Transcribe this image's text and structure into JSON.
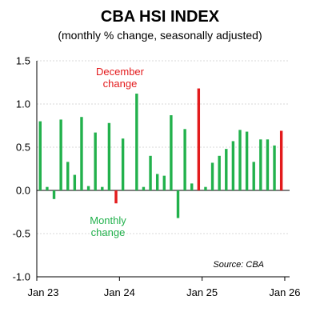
{
  "title": "CBA HSI INDEX",
  "subtitle": "(monthly % change, seasonally adjusted)",
  "colors": {
    "monthly": "#22b14c",
    "december": "#e31a1c",
    "grid": "#d8d8d8",
    "axis": "#000000"
  },
  "annotations": {
    "december": [
      "December",
      "change"
    ],
    "monthly": [
      "Monthly",
      "change"
    ],
    "source": "Source: CBA"
  },
  "chart_data": {
    "type": "bar",
    "title": "CBA HSI INDEX",
    "subtitle": "(monthly % change, seasonally adjusted)",
    "xlabel": "",
    "ylabel": "",
    "ylim": [
      -1.0,
      1.5
    ],
    "yticks": [
      -1.0,
      -0.5,
      0.0,
      0.5,
      1.0,
      1.5
    ],
    "ytick_labels": [
      "-1.0",
      "-0.5",
      "0.0",
      "0.5",
      "1.0",
      "1.5"
    ],
    "x_tick_labels": [
      "Jan 23",
      "Jan 24",
      "Jan 25",
      "Jan 26"
    ],
    "grid": true,
    "categories": [
      "Jan 23",
      "Feb 23",
      "Mar 23",
      "Apr 23",
      "May 23",
      "Jun 23",
      "Jul 23",
      "Aug 23",
      "Sep 23",
      "Oct 23",
      "Nov 23",
      "Dec 23",
      "Jan 24",
      "Feb 24",
      "Mar 24",
      "Apr 24",
      "May 24",
      "Jun 24",
      "Jul 24",
      "Aug 24",
      "Sep 24",
      "Oct 24",
      "Nov 24",
      "Dec 24",
      "Jan 25",
      "Feb 25",
      "Mar 25",
      "Apr 25",
      "May 25",
      "Jun 25",
      "Jul 25",
      "Aug 25",
      "Sep 25",
      "Oct 25",
      "Nov 25",
      "Dec 25"
    ],
    "values": [
      0.8,
      0.04,
      -0.1,
      0.82,
      0.33,
      0.18,
      0.85,
      0.05,
      0.67,
      0.04,
      0.78,
      -0.15,
      0.6,
      0.0,
      1.12,
      0.04,
      0.4,
      0.19,
      0.17,
      0.87,
      -0.32,
      0.71,
      0.08,
      1.18,
      0.04,
      0.32,
      0.4,
      0.48,
      0.57,
      0.7,
      0.68,
      0.33,
      0.59,
      0.59,
      0.52,
      0.69
    ],
    "december_indices": [
      11,
      23,
      35
    ]
  }
}
